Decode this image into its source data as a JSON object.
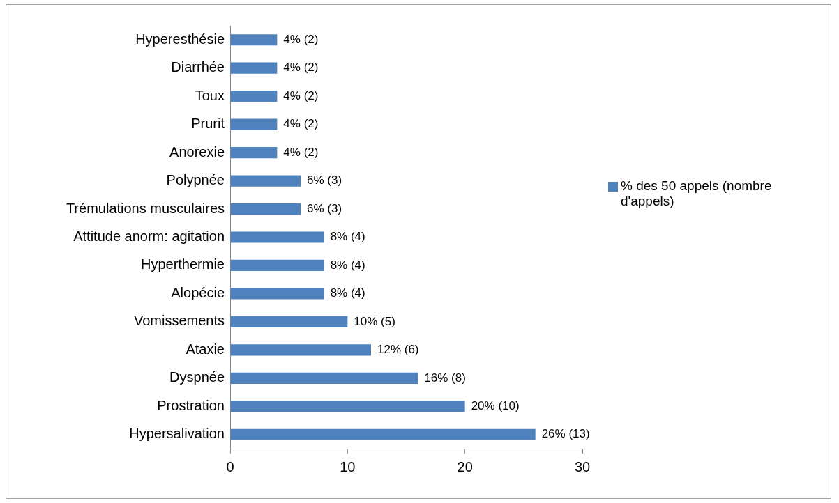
{
  "chart_data": {
    "type": "bar",
    "orientation": "horizontal",
    "categories": [
      "Hyperesthésie",
      "Diarrhée",
      "Toux",
      "Prurit",
      "Anorexie",
      "Polypnée",
      "Trémulations musculaires",
      "Attitude anorm: agitation",
      "Hyperthermie",
      "Alopécie",
      "Vomissements",
      "Ataxie",
      "Dyspnée",
      "Prostration",
      "Hypersalivation"
    ],
    "series": [
      {
        "name": "% des 50 appels (nombre d'appels)",
        "color": "#4f81bd",
        "values": [
          4,
          4,
          4,
          4,
          4,
          6,
          6,
          8,
          8,
          8,
          10,
          12,
          16,
          20,
          26
        ],
        "value_labels": [
          "4% (2)",
          "4% (2)",
          "4% (2)",
          "4% (2)",
          "4% (2)",
          "6% (3)",
          "6% (3)",
          "8% (4)",
          "8% (4)",
          "8% (4)",
          "10% (5)",
          "12% (6)",
          "16% (8)",
          "20% (10)",
          "26% (13)"
        ]
      }
    ],
    "xlim": [
      0,
      30
    ],
    "xticks": [
      0,
      10,
      20,
      30
    ],
    "legend": "right"
  }
}
